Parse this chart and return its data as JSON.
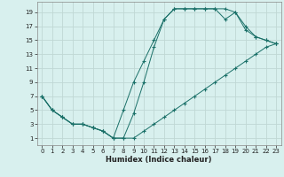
{
  "xlabel": "Humidex (Indice chaleur)",
  "bg_color": "#d8f0ee",
  "grid_color": "#c0d8d4",
  "line_color": "#1a7068",
  "xlim": [
    -0.5,
    23.5
  ],
  "ylim": [
    0.0,
    20.5
  ],
  "xticks": [
    0,
    1,
    2,
    3,
    4,
    5,
    6,
    7,
    8,
    9,
    10,
    11,
    12,
    13,
    14,
    15,
    16,
    17,
    18,
    19,
    20,
    21,
    22,
    23
  ],
  "yticks": [
    1,
    3,
    5,
    7,
    9,
    11,
    13,
    15,
    17,
    19
  ],
  "line1_x": [
    0,
    1,
    2,
    3,
    4,
    5,
    6,
    7,
    8,
    9,
    10,
    11,
    12,
    13,
    14,
    15,
    16,
    17,
    18,
    19,
    20,
    21,
    22,
    23
  ],
  "line1_y": [
    7,
    5,
    4,
    3,
    3,
    2.5,
    2,
    1,
    1,
    4.5,
    9,
    14,
    18,
    19.5,
    19.5,
    19.5,
    19.5,
    19.5,
    19.5,
    19,
    17,
    15.5,
    15,
    14.5
  ],
  "line2_x": [
    0,
    1,
    2,
    3,
    4,
    5,
    6,
    7,
    8,
    9,
    10,
    11,
    12,
    13,
    14,
    15,
    16,
    17,
    18,
    19,
    20,
    21,
    22,
    23
  ],
  "line2_y": [
    7,
    5,
    4,
    3,
    3,
    2.5,
    2,
    1,
    5,
    9,
    12,
    15,
    18,
    19.5,
    19.5,
    19.5,
    19.5,
    19.5,
    18,
    19,
    16.5,
    15.5,
    15,
    14.5
  ],
  "line3_x": [
    0,
    1,
    2,
    3,
    4,
    5,
    6,
    7,
    8,
    9,
    10,
    11,
    12,
    13,
    14,
    15,
    16,
    17,
    18,
    19,
    20,
    21,
    22,
    23
  ],
  "line3_y": [
    7,
    5,
    4,
    3,
    3,
    2.5,
    2,
    1,
    1,
    1,
    2,
    3,
    4,
    5,
    6,
    7,
    8,
    9,
    10,
    11,
    12,
    13,
    14,
    14.5
  ]
}
